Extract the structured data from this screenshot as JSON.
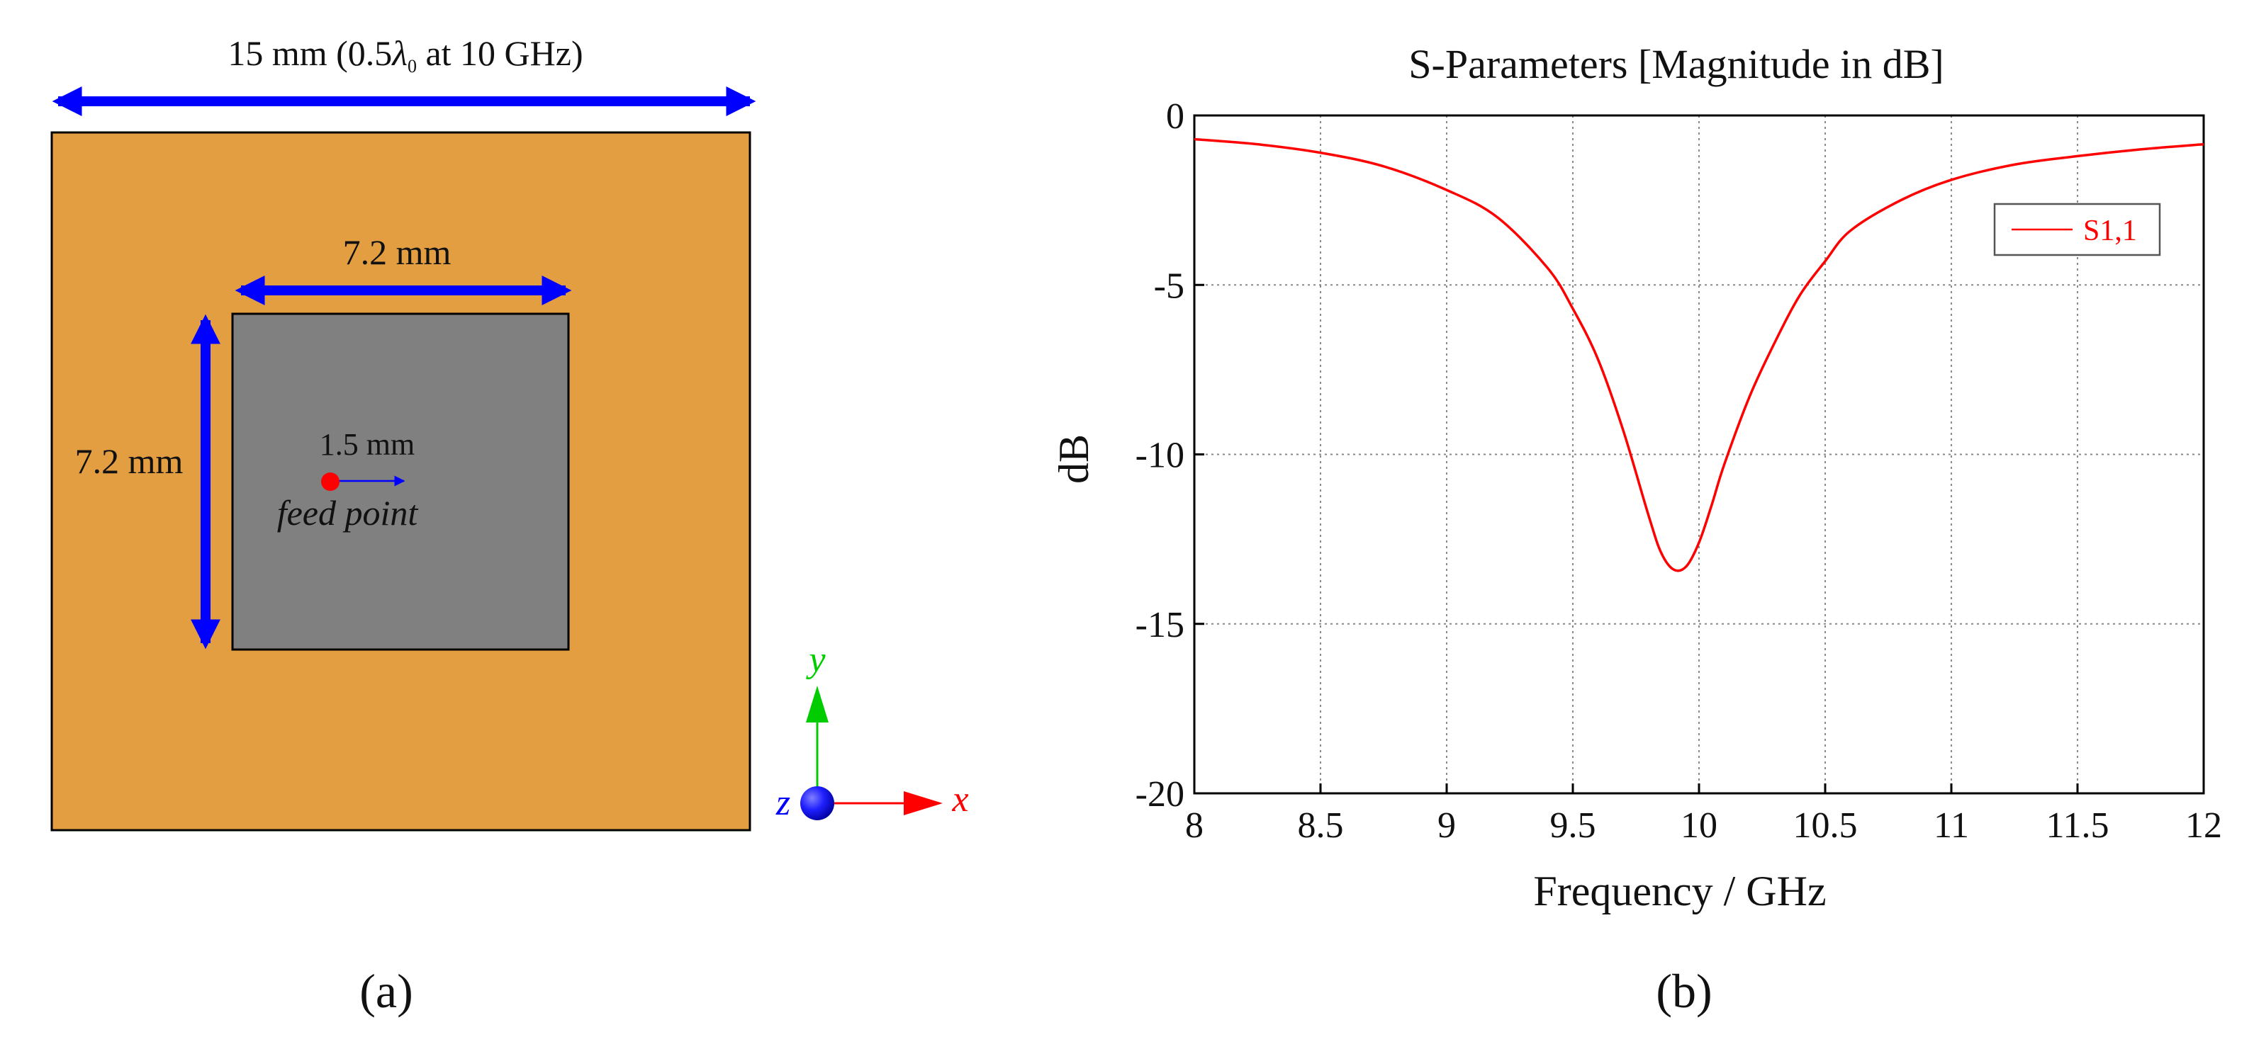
{
  "panel_a": {
    "top_dim_prefix": "15 mm (0.5",
    "top_dim_lambda": "λ",
    "top_dim_sub": "0",
    "top_dim_suffix": " at 10 GHz)",
    "patch_width_label": "7.2 mm",
    "patch_height_label": "7.2 mm",
    "feed_offset_label": "1.5 mm",
    "feed_label": "feed point",
    "axis_x": "x",
    "axis_y": "y",
    "axis_z": "z",
    "caption": "(a)",
    "colors": {
      "substrate": "#e39e41",
      "patch": "#808080",
      "dimension_arrow": "#0000ff",
      "feed": "#ff0000",
      "axis_x": "#ff0000",
      "axis_y": "#00cc00",
      "axis_z": "#0000ff"
    }
  },
  "panel_b": {
    "caption": "(b)"
  },
  "chart_data": {
    "type": "line",
    "title": "S-Parameters [Magnitude in dB]",
    "xlabel": "Frequency / GHz",
    "ylabel": "dB",
    "xlim": [
      8,
      12
    ],
    "ylim": [
      -20,
      0
    ],
    "xticks": [
      8,
      8.5,
      9,
      9.5,
      10,
      10.5,
      11,
      11.5,
      12
    ],
    "xtick_labels": [
      "8",
      "8.5",
      "9",
      "9.5",
      "10",
      "10.5",
      "11",
      "11.5",
      "12"
    ],
    "yticks": [
      0,
      -5,
      -10,
      -15,
      -20
    ],
    "ytick_labels": [
      "0",
      "-5",
      "-10",
      "-15",
      "-20"
    ],
    "grid": true,
    "legend_position": "top-right",
    "series": [
      {
        "name": "S1,1",
        "color": "#ff0000",
        "x": [
          8.0,
          8.25,
          8.5,
          8.75,
          9.0,
          9.2,
          9.4,
          9.5,
          9.6,
          9.7,
          9.8,
          9.85,
          9.9,
          9.95,
          10.0,
          10.05,
          10.1,
          10.2,
          10.3,
          10.4,
          10.5,
          10.6,
          10.8,
          11.0,
          11.25,
          11.5,
          11.75,
          12.0
        ],
        "y": [
          -0.7,
          -0.85,
          -1.1,
          -1.5,
          -2.2,
          -3.0,
          -4.5,
          -5.7,
          -7.2,
          -9.3,
          -11.8,
          -12.9,
          -13.4,
          -13.3,
          -12.6,
          -11.5,
          -10.3,
          -8.3,
          -6.7,
          -5.3,
          -4.3,
          -3.4,
          -2.5,
          -1.9,
          -1.45,
          -1.2,
          -1.0,
          -0.85
        ]
      }
    ]
  }
}
